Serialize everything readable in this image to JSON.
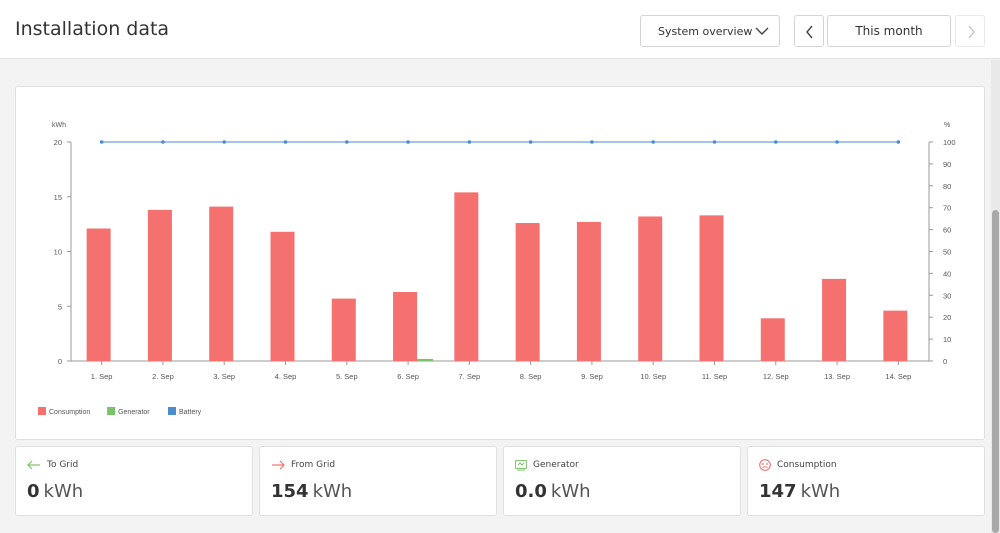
{
  "header": {
    "title": "Installation data",
    "view_select": "System overview",
    "period": "This month"
  },
  "chart_data": {
    "type": "bar",
    "categories": [
      "1. Sep",
      "2. Sep",
      "3. Sep",
      "4. Sep",
      "5. Sep",
      "6. Sep",
      "7. Sep",
      "8. Sep",
      "9. Sep",
      "10. Sep",
      "11. Sep",
      "12. Sep",
      "13. Sep",
      "14. Sep"
    ],
    "y_left_label": "kWh",
    "y_right_label": "%",
    "ylim_left": [
      0,
      20
    ],
    "ylim_right": [
      0,
      100
    ],
    "y_left_ticks": [
      0,
      5,
      10,
      15,
      20
    ],
    "y_right_ticks": [
      0,
      10,
      20,
      30,
      40,
      50,
      60,
      70,
      80,
      90,
      100
    ],
    "series": [
      {
        "name": "Consumption",
        "type": "bar",
        "axis": "left",
        "color": "#f47170",
        "values": [
          12.1,
          13.8,
          14.1,
          11.8,
          5.7,
          6.3,
          15.4,
          12.6,
          12.7,
          13.2,
          13.3,
          3.9,
          7.5,
          4.6
        ]
      },
      {
        "name": "Generator",
        "type": "bar",
        "axis": "left",
        "color": "#7ac36a",
        "values": [
          0,
          0,
          0,
          0,
          0,
          0.1,
          0,
          0,
          0,
          0,
          0,
          0,
          0,
          0
        ]
      },
      {
        "name": "Battery",
        "type": "line",
        "axis": "right",
        "color": "#4a8ccd",
        "values": [
          100,
          100,
          100,
          100,
          100,
          100,
          100,
          100,
          100,
          100,
          100,
          100,
          100,
          100
        ]
      }
    ],
    "legend_position": "bottom-left",
    "grid": false
  },
  "stats": [
    {
      "title": "To Grid",
      "value": "0",
      "unit": "kWh",
      "icon": "arrow-left-icon",
      "color": "#7ac36a"
    },
    {
      "title": "From Grid",
      "value": "154",
      "unit": "kWh",
      "icon": "arrow-right-icon",
      "color": "#f47170"
    },
    {
      "title": "Generator",
      "value": "0.0",
      "unit": "kWh",
      "icon": "generator-icon",
      "color": "#7ac36a"
    },
    {
      "title": "Consumption",
      "value": "147",
      "unit": "kWh",
      "icon": "consumption-icon",
      "color": "#f47170"
    }
  ]
}
